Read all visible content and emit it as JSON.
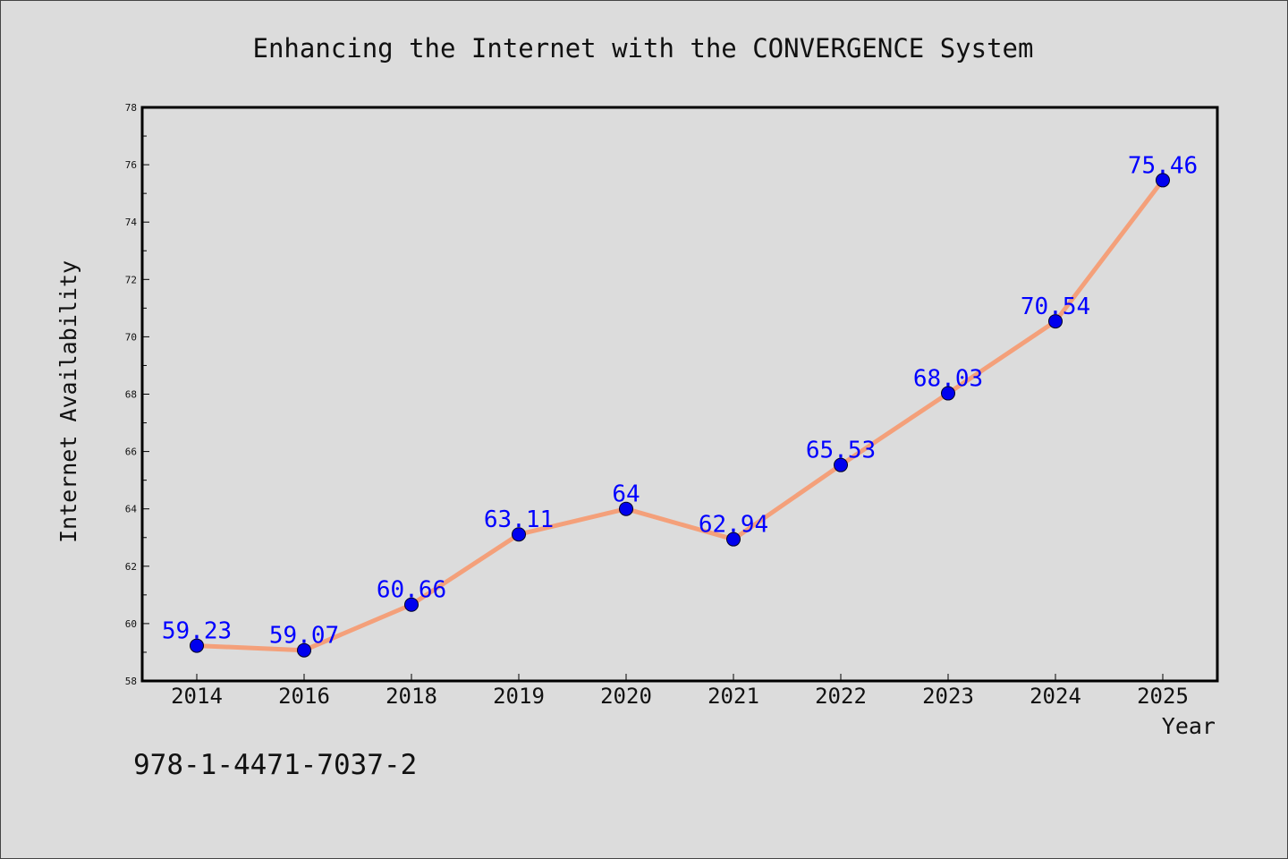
{
  "chart_data": {
    "type": "line",
    "title": "Enhancing the Internet with the CONVERGENCE System",
    "xlabel": "Year",
    "ylabel": "Internet Availability",
    "categories": [
      "2014",
      "2016",
      "2018",
      "2019",
      "2020",
      "2021",
      "2022",
      "2023",
      "2024",
      "2025"
    ],
    "series": [
      {
        "values": [
          59.23,
          59.07,
          60.66,
          63.11,
          64,
          62.94,
          65.53,
          68.03,
          70.54,
          75.46
        ],
        "labels": [
          "59.23",
          "59.07",
          "60.66",
          "63.11",
          "64",
          "62.94",
          "65.53",
          "68.03",
          "70.54",
          "75.46"
        ]
      }
    ],
    "ylim": [
      58,
      78
    ],
    "yticks": [
      58,
      60,
      62,
      64,
      66,
      68,
      70,
      72,
      74,
      76,
      78
    ],
    "grid": false,
    "colors": {
      "line": "#f4a07a",
      "marker": "#0000ee",
      "data_label": "#0000ff",
      "frame": "#000000",
      "background": "#dcdcdc"
    }
  },
  "footnote": "978-1-4471-7037-2"
}
